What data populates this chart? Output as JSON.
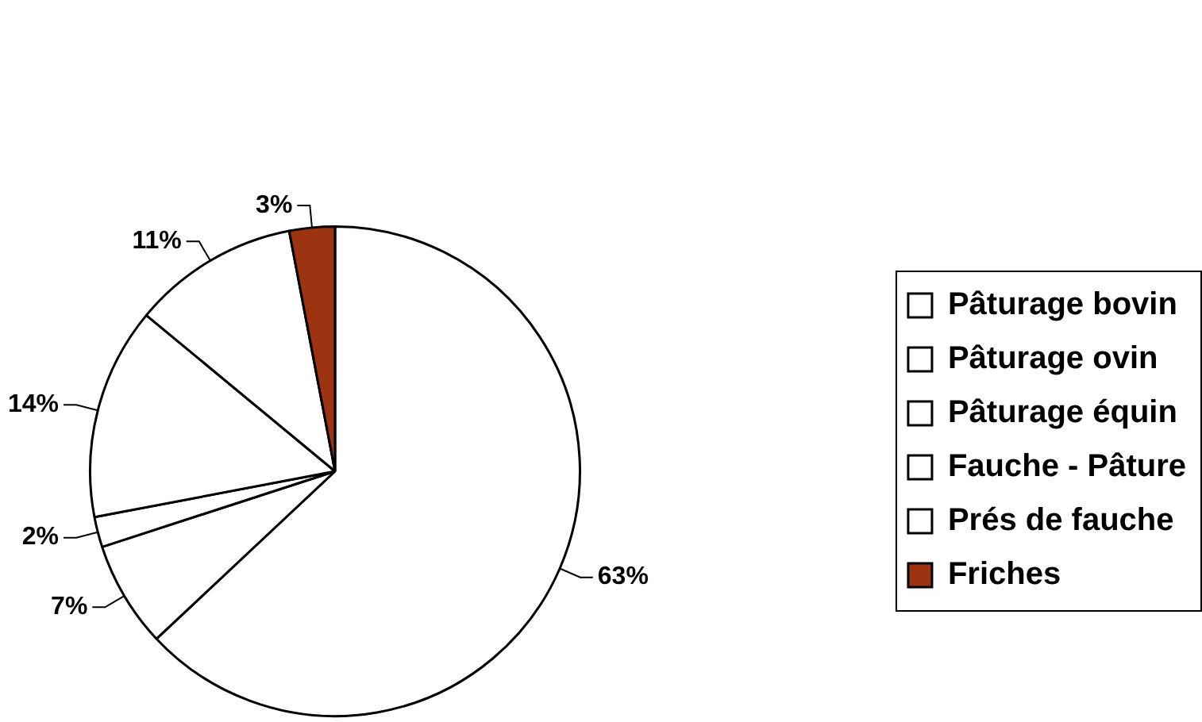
{
  "chart_data": {
    "type": "pie",
    "categories": [
      "Pâturage bovin",
      "Pâturage ovin",
      "Pâturage équin",
      "Fauche - Pâture",
      "Prés de fauche",
      "Friches"
    ],
    "values": [
      63,
      7,
      2,
      14,
      11,
      3
    ],
    "colors": [
      "#ffffff",
      "#ffffff",
      "#ffffff",
      "#ffffff",
      "#ffffff",
      "#9c3311"
    ],
    "value_labels": [
      "63%",
      "7%",
      "2%",
      "14%",
      "11%",
      "3%"
    ],
    "legend": "right"
  }
}
